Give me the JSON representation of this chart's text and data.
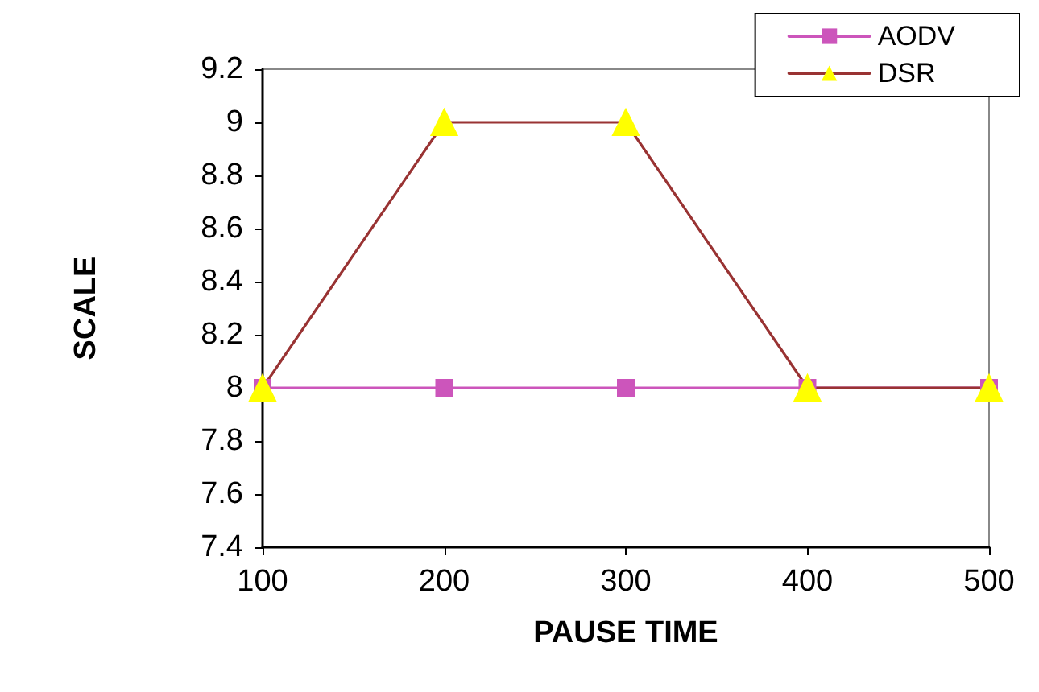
{
  "chart_data": {
    "type": "line",
    "xlabel": "PAUSE TIME",
    "ylabel": "SCALE",
    "x": [
      100,
      200,
      300,
      400,
      500
    ],
    "series": [
      {
        "name": "AODV",
        "color": "#cc55bb",
        "marker": "square",
        "values": [
          8,
          8,
          8,
          8,
          8
        ]
      },
      {
        "name": "DSR",
        "color": "#993333",
        "marker": "triangle",
        "colors": [
          "#ffff00",
          "#ffff00",
          "#ffff00",
          "#ffff00",
          "#ffff00"
        ],
        "values": [
          8,
          9,
          9,
          8,
          8
        ]
      }
    ],
    "xlim": [
      100,
      500
    ],
    "xticks": [
      100,
      200,
      300,
      400,
      500
    ],
    "ylim": [
      7.4,
      9.2
    ],
    "yticks": [
      7.4,
      7.6,
      7.8,
      8,
      8.2,
      8.4,
      8.6,
      8.8,
      9,
      9.2
    ],
    "grid": false,
    "legend": "top right",
    "line_style": "solid"
  }
}
